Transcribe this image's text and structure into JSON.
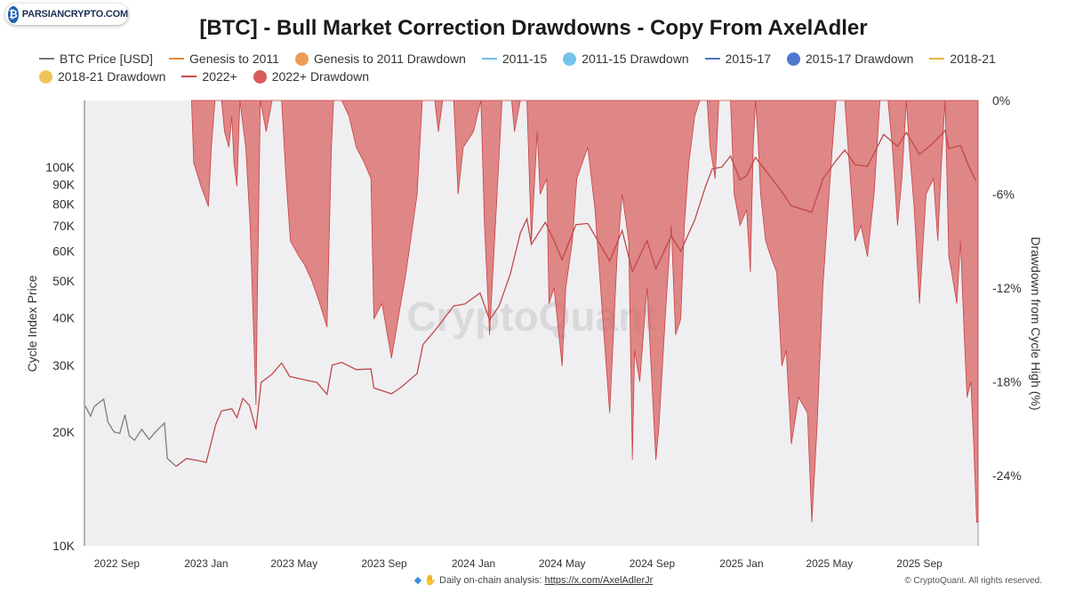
{
  "logo": {
    "text": "PARSIANCRYPTO.COM"
  },
  "title": "[BTC] - Bull Market Correction Drawdowns - Copy From AxelAdler",
  "legend": [
    {
      "label": "BTC Price [USD]",
      "kind": "line",
      "color": "#777777"
    },
    {
      "label": "Genesis to 2011",
      "kind": "line",
      "color": "#e48a3c"
    },
    {
      "label": "Genesis to 2011 Drawdown",
      "kind": "dot",
      "color": "#ef9a55"
    },
    {
      "label": "2011-15",
      "kind": "line",
      "color": "#6fbfe6"
    },
    {
      "label": "2011-15 Drawdown",
      "kind": "dot",
      "color": "#74c3ea"
    },
    {
      "label": "2015-17",
      "kind": "line",
      "color": "#4a78c2"
    },
    {
      "label": "2015-17 Drawdown",
      "kind": "dot",
      "color": "#4f77d2"
    },
    {
      "label": "2018-21",
      "kind": "line",
      "color": "#e9b53c"
    },
    {
      "label": "2018-21 Drawdown",
      "kind": "dot",
      "color": "#eec55a"
    },
    {
      "label": "2022+",
      "kind": "line",
      "color": "#c94545"
    },
    {
      "label": "2022+ Drawdown",
      "kind": "dot",
      "color": "#d95a5a"
    }
  ],
  "footer": {
    "prefix": "Daily on-chain analysis:",
    "link": "https://x.com/AxelAdlerJr",
    "copyright": "© CryptoQuant. All rights reserved."
  },
  "chart_data": {
    "type": "line+area",
    "watermark": "CryptoQuant",
    "y_left": {
      "label": "Cycle Index Price",
      "scale": "log",
      "range": [
        10000,
        150000
      ],
      "ticks": [
        {
          "v": 10000,
          "t": "10K"
        },
        {
          "v": 20000,
          "t": "20K"
        },
        {
          "v": 30000,
          "t": "30K"
        },
        {
          "v": 40000,
          "t": "40K"
        },
        {
          "v": 50000,
          "t": "50K"
        },
        {
          "v": 60000,
          "t": "60K"
        },
        {
          "v": 70000,
          "t": "70K"
        },
        {
          "v": 80000,
          "t": "80K"
        },
        {
          "v": 90000,
          "t": "90K"
        },
        {
          "v": 100000,
          "t": "100K"
        }
      ]
    },
    "y_right": {
      "label": "Drawdown from Cycle High (%)",
      "range": [
        -28.5,
        0
      ],
      "ticks": [
        {
          "v": 0,
          "t": "0%"
        },
        {
          "v": -6,
          "t": "-6%"
        },
        {
          "v": -12,
          "t": "-12%"
        },
        {
          "v": -18,
          "t": "-18%"
        },
        {
          "v": -24,
          "t": "-24%"
        }
      ]
    },
    "x_range": [
      "2022-07-20",
      "2025-11-20"
    ],
    "x_ticks": [
      {
        "d": "2022-09-01",
        "t": "2022 Sep"
      },
      {
        "d": "2023-01-01",
        "t": "2023 Jan"
      },
      {
        "d": "2023-05-01",
        "t": "2023 May"
      },
      {
        "d": "2023-09-01",
        "t": "2023 Sep"
      },
      {
        "d": "2024-01-01",
        "t": "2024 Jan"
      },
      {
        "d": "2024-05-01",
        "t": "2024 May"
      },
      {
        "d": "2024-09-01",
        "t": "2024 Sep"
      },
      {
        "d": "2025-01-01",
        "t": "2025 Jan"
      },
      {
        "d": "2025-05-01",
        "t": "2025 May"
      },
      {
        "d": "2025-09-01",
        "t": "2025 Sep"
      }
    ],
    "series": [
      {
        "name": "BTC Price [USD]",
        "color": "#7d7d7d",
        "points": [
          [
            "2022-07-20",
            23400
          ],
          [
            "2022-07-27",
            22000
          ],
          [
            "2022-08-01",
            23300
          ],
          [
            "2022-08-08",
            23900
          ],
          [
            "2022-08-14",
            24400
          ],
          [
            "2022-08-20",
            21200
          ],
          [
            "2022-08-28",
            20000
          ],
          [
            "2022-09-05",
            19800
          ],
          [
            "2022-09-12",
            22200
          ],
          [
            "2022-09-18",
            19500
          ],
          [
            "2022-09-25",
            19000
          ],
          [
            "2022-10-05",
            20300
          ],
          [
            "2022-10-15",
            19100
          ],
          [
            "2022-10-25",
            20100
          ],
          [
            "2022-11-05",
            21100
          ],
          [
            "2022-11-09",
            17000
          ],
          [
            "2022-11-15",
            16600
          ],
          [
            "2022-11-21",
            16200
          ]
        ]
      },
      {
        "name": "2022+",
        "color": "#c04848",
        "points": [
          [
            "2022-11-21",
            16200
          ],
          [
            "2022-12-05",
            17000
          ],
          [
            "2022-12-20",
            16800
          ],
          [
            "2023-01-01",
            16600
          ],
          [
            "2023-01-14",
            20900
          ],
          [
            "2023-01-22",
            22700
          ],
          [
            "2023-02-05",
            23000
          ],
          [
            "2023-02-12",
            21800
          ],
          [
            "2023-02-20",
            24500
          ],
          [
            "2023-03-01",
            23500
          ],
          [
            "2023-03-10",
            20300
          ],
          [
            "2023-03-17",
            27000
          ],
          [
            "2023-04-01",
            28400
          ],
          [
            "2023-04-14",
            30400
          ],
          [
            "2023-04-25",
            28000
          ],
          [
            "2023-05-10",
            27600
          ],
          [
            "2023-06-01",
            27000
          ],
          [
            "2023-06-15",
            25100
          ],
          [
            "2023-06-22",
            30000
          ],
          [
            "2023-07-05",
            30500
          ],
          [
            "2023-07-25",
            29200
          ],
          [
            "2023-08-14",
            29300
          ],
          [
            "2023-08-18",
            26100
          ],
          [
            "2023-09-11",
            25200
          ],
          [
            "2023-09-25",
            26300
          ],
          [
            "2023-10-16",
            28500
          ],
          [
            "2023-10-24",
            34000
          ],
          [
            "2023-11-10",
            37200
          ],
          [
            "2023-12-05",
            43000
          ],
          [
            "2023-12-20",
            43500
          ],
          [
            "2024-01-10",
            46500
          ],
          [
            "2024-01-23",
            39500
          ],
          [
            "2024-02-05",
            43000
          ],
          [
            "2024-02-20",
            52000
          ],
          [
            "2024-03-05",
            67000
          ],
          [
            "2024-03-14",
            73000
          ],
          [
            "2024-03-20",
            62500
          ],
          [
            "2024-04-08",
            71500
          ],
          [
            "2024-04-20",
            64000
          ],
          [
            "2024-05-01",
            57000
          ],
          [
            "2024-05-20",
            70500
          ],
          [
            "2024-06-05",
            71000
          ],
          [
            "2024-06-25",
            61000
          ],
          [
            "2024-07-05",
            56500
          ],
          [
            "2024-07-22",
            68000
          ],
          [
            "2024-08-05",
            53000
          ],
          [
            "2024-08-25",
            64000
          ],
          [
            "2024-09-06",
            53900
          ],
          [
            "2024-09-27",
            65800
          ],
          [
            "2024-10-10",
            60000
          ],
          [
            "2024-10-29",
            72500
          ],
          [
            "2024-11-12",
            88000
          ],
          [
            "2024-11-22",
            99000
          ],
          [
            "2024-12-05",
            100000
          ],
          [
            "2024-12-17",
            107000
          ],
          [
            "2024-12-30",
            92500
          ],
          [
            "2025-01-08",
            95000
          ],
          [
            "2025-01-20",
            106000
          ],
          [
            "2025-02-03",
            98000
          ],
          [
            "2025-02-25",
            86000
          ],
          [
            "2025-03-10",
            79000
          ],
          [
            "2025-04-07",
            76000
          ],
          [
            "2025-04-22",
            93000
          ],
          [
            "2025-05-10",
            104000
          ],
          [
            "2025-05-22",
            111000
          ],
          [
            "2025-06-05",
            101500
          ],
          [
            "2025-06-22",
            100500
          ],
          [
            "2025-07-14",
            122000
          ],
          [
            "2025-08-02",
            113500
          ],
          [
            "2025-08-14",
            123500
          ],
          [
            "2025-09-01",
            108000
          ],
          [
            "2025-09-20",
            116000
          ],
          [
            "2025-10-06",
            125000
          ],
          [
            "2025-10-11",
            112000
          ],
          [
            "2025-10-27",
            114000
          ],
          [
            "2025-11-07",
            101000
          ],
          [
            "2025-11-17",
            92000
          ]
        ]
      }
    ],
    "drawdown": {
      "name": "2022+ Drawdown",
      "color": "#d95a5a",
      "points": [
        [
          "2022-12-12",
          0
        ],
        [
          "2022-12-15",
          -4
        ],
        [
          "2022-12-25",
          -5.5
        ],
        [
          "2023-01-04",
          -6.8
        ],
        [
          "2023-01-08",
          -3
        ],
        [
          "2023-01-13",
          0
        ],
        [
          "2023-01-22",
          0
        ],
        [
          "2023-01-26",
          -2
        ],
        [
          "2023-02-01",
          -3
        ],
        [
          "2023-02-05",
          -1
        ],
        [
          "2023-02-08",
          -4
        ],
        [
          "2023-02-12",
          -5.5
        ],
        [
          "2023-02-16",
          0
        ],
        [
          "2023-02-24",
          -3
        ],
        [
          "2023-03-02",
          -8
        ],
        [
          "2023-03-10",
          -19.5
        ],
        [
          "2023-03-12",
          -12
        ],
        [
          "2023-03-16",
          0
        ],
        [
          "2023-03-24",
          -2
        ],
        [
          "2023-04-01",
          0
        ],
        [
          "2023-04-14",
          0
        ],
        [
          "2023-04-20",
          -5
        ],
        [
          "2023-04-26",
          -9
        ],
        [
          "2023-05-08",
          -10
        ],
        [
          "2023-05-15",
          -10.5
        ],
        [
          "2023-05-25",
          -11.5
        ],
        [
          "2023-06-05",
          -13
        ],
        [
          "2023-06-15",
          -14.5
        ],
        [
          "2023-06-21",
          -3
        ],
        [
          "2023-06-24",
          0
        ],
        [
          "2023-07-05",
          0
        ],
        [
          "2023-07-15",
          -1
        ],
        [
          "2023-07-25",
          -3
        ],
        [
          "2023-08-05",
          -4
        ],
        [
          "2023-08-14",
          -5
        ],
        [
          "2023-08-18",
          -14
        ],
        [
          "2023-08-29",
          -13
        ],
        [
          "2023-09-11",
          -16.5
        ],
        [
          "2023-09-20",
          -14
        ],
        [
          "2023-10-01",
          -11
        ],
        [
          "2023-10-16",
          -6
        ],
        [
          "2023-10-23",
          0
        ],
        [
          "2023-11-09",
          0
        ],
        [
          "2023-11-14",
          -2
        ],
        [
          "2023-11-20",
          0
        ],
        [
          "2023-12-05",
          0
        ],
        [
          "2023-12-11",
          -6
        ],
        [
          "2023-12-18",
          -3
        ],
        [
          "2024-01-01",
          -2
        ],
        [
          "2024-01-11",
          0
        ],
        [
          "2024-01-16",
          -8
        ],
        [
          "2024-01-23",
          -15
        ],
        [
          "2024-02-01",
          -7
        ],
        [
          "2024-02-09",
          0
        ],
        [
          "2024-02-22",
          0
        ],
        [
          "2024-02-26",
          -2
        ],
        [
          "2024-03-05",
          0
        ],
        [
          "2024-03-14",
          0
        ],
        [
          "2024-03-20",
          -9
        ],
        [
          "2024-03-28",
          -2
        ],
        [
          "2024-04-01",
          -6
        ],
        [
          "2024-04-10",
          -5
        ],
        [
          "2024-04-13",
          -13
        ],
        [
          "2024-04-20",
          -12
        ],
        [
          "2024-05-01",
          -17
        ],
        [
          "2024-05-06",
          -12
        ],
        [
          "2024-05-15",
          -9
        ],
        [
          "2024-05-21",
          -5
        ],
        [
          "2024-06-05",
          -3
        ],
        [
          "2024-06-15",
          -7
        ],
        [
          "2024-06-24",
          -13
        ],
        [
          "2024-07-05",
          -20
        ],
        [
          "2024-07-15",
          -10
        ],
        [
          "2024-07-22",
          -6
        ],
        [
          "2024-07-31",
          -9
        ],
        [
          "2024-08-05",
          -23
        ],
        [
          "2024-08-08",
          -16
        ],
        [
          "2024-08-15",
          -18
        ],
        [
          "2024-08-25",
          -12
        ],
        [
          "2024-09-06",
          -23
        ],
        [
          "2024-09-10",
          -21
        ],
        [
          "2024-09-20",
          -13
        ],
        [
          "2024-09-27",
          -8
        ],
        [
          "2024-10-03",
          -15
        ],
        [
          "2024-10-10",
          -14
        ],
        [
          "2024-10-15",
          -8
        ],
        [
          "2024-10-21",
          -4
        ],
        [
          "2024-10-29",
          -1
        ],
        [
          "2024-11-05",
          0
        ],
        [
          "2024-11-15",
          0
        ],
        [
          "2024-11-19",
          -3
        ],
        [
          "2024-11-26",
          -5
        ],
        [
          "2024-12-01",
          0
        ],
        [
          "2024-12-17",
          0
        ],
        [
          "2024-12-22",
          -6
        ],
        [
          "2024-12-30",
          -8
        ],
        [
          "2025-01-08",
          -7
        ],
        [
          "2025-01-13",
          -11
        ],
        [
          "2025-01-17",
          -3
        ],
        [
          "2025-01-20",
          0
        ],
        [
          "2025-01-23",
          -2
        ],
        [
          "2025-01-27",
          -6
        ],
        [
          "2025-02-03",
          -9
        ],
        [
          "2025-02-10",
          -10
        ],
        [
          "2025-02-18",
          -11
        ],
        [
          "2025-02-25",
          -17
        ],
        [
          "2025-03-03",
          -16
        ],
        [
          "2025-03-10",
          -22
        ],
        [
          "2025-03-20",
          -19
        ],
        [
          "2025-04-01",
          -20
        ],
        [
          "2025-04-07",
          -27
        ],
        [
          "2025-04-14",
          -21
        ],
        [
          "2025-04-22",
          -12
        ],
        [
          "2025-04-29",
          -7
        ],
        [
          "2025-05-05",
          -3
        ],
        [
          "2025-05-10",
          0
        ],
        [
          "2025-05-22",
          0
        ],
        [
          "2025-05-28",
          -4
        ],
        [
          "2025-06-05",
          -9
        ],
        [
          "2025-06-13",
          -8
        ],
        [
          "2025-06-22",
          -10
        ],
        [
          "2025-07-01",
          -6
        ],
        [
          "2025-07-09",
          0
        ],
        [
          "2025-07-20",
          0
        ],
        [
          "2025-07-26",
          -3
        ],
        [
          "2025-08-02",
          -8
        ],
        [
          "2025-08-08",
          -5
        ],
        [
          "2025-08-14",
          0
        ],
        [
          "2025-08-18",
          -3
        ],
        [
          "2025-08-25",
          -7
        ],
        [
          "2025-09-01",
          -13
        ],
        [
          "2025-09-10",
          -6
        ],
        [
          "2025-09-20",
          -5
        ],
        [
          "2025-09-26",
          -9
        ],
        [
          "2025-10-01",
          -4
        ],
        [
          "2025-10-06",
          0
        ],
        [
          "2025-10-11",
          -10
        ],
        [
          "2025-10-15",
          -11
        ],
        [
          "2025-10-22",
          -13
        ],
        [
          "2025-10-27",
          -9
        ],
        [
          "2025-11-01",
          -15
        ],
        [
          "2025-11-05",
          -19
        ],
        [
          "2025-11-10",
          -18
        ],
        [
          "2025-11-14",
          -22
        ],
        [
          "2025-11-18",
          -27
        ],
        [
          "2025-11-20",
          -27
        ]
      ]
    }
  }
}
